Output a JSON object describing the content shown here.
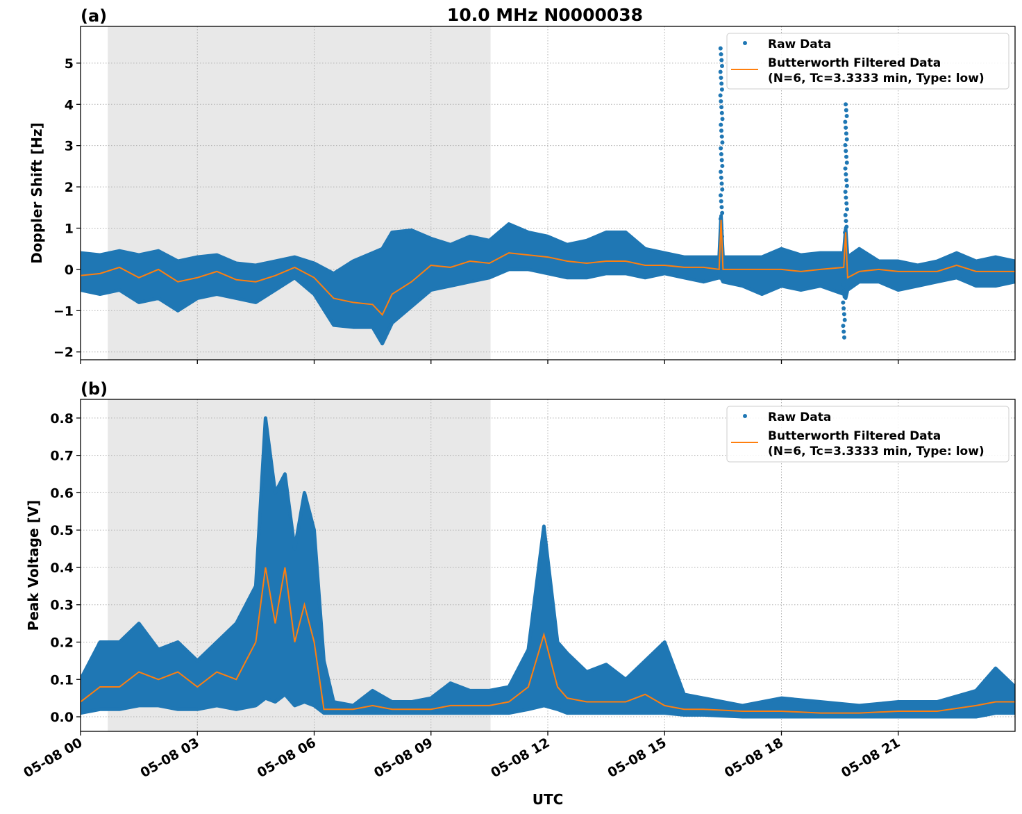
{
  "chart_data": [
    {
      "type": "scatter",
      "panel_label": "(a)",
      "title": "10.0 MHz N0000038",
      "xlabel": "",
      "ylabel": "Doppler Shift [Hz]",
      "xlim": [
        0,
        24
      ],
      "ylim": [
        -2.19,
        5.89
      ],
      "yticks": [
        -2,
        -1,
        0,
        1,
        2,
        3,
        4,
        5
      ],
      "ytick_labels": [
        "−2",
        "−1",
        "0",
        "1",
        "2",
        "3",
        "4",
        "5"
      ],
      "grid": true,
      "shaded_interval_hours": [
        0.7,
        10.53
      ],
      "legend": {
        "placement": "top-right",
        "entries": [
          "Raw Data",
          "Butterworth Filtered Data",
          "(N=6, Tc=3.3333 min, Type: low)"
        ]
      },
      "colors": {
        "raw": "#1f77b4",
        "filtered": "#ff7f0e",
        "shade": "#e8e8e8"
      },
      "x_hours": [
        0,
        0.5,
        1,
        1.5,
        2,
        2.5,
        3,
        3.5,
        4,
        4.5,
        5,
        5.5,
        6,
        6.5,
        7,
        7.5,
        7.75,
        8,
        8.5,
        9,
        9.5,
        10,
        10.5,
        11,
        11.5,
        12,
        12.5,
        13,
        13.5,
        14,
        14.5,
        15,
        15.5,
        16,
        16.4,
        16.45,
        16.5,
        17,
        17.5,
        18,
        18.5,
        19,
        19.6,
        19.65,
        19.7,
        20,
        20.5,
        21,
        21.5,
        22,
        22.5,
        23,
        23.5,
        24
      ],
      "filtered": [
        -0.15,
        -0.1,
        0.05,
        -0.2,
        0.0,
        -0.3,
        -0.2,
        -0.05,
        -0.25,
        -0.3,
        -0.15,
        0.05,
        -0.2,
        -0.7,
        -0.8,
        -0.85,
        -1.1,
        -0.6,
        -0.3,
        0.1,
        0.05,
        0.2,
        0.15,
        0.4,
        0.35,
        0.3,
        0.2,
        0.15,
        0.2,
        0.2,
        0.1,
        0.1,
        0.05,
        0.05,
        0.0,
        1.2,
        0.0,
        0.0,
        0.0,
        0.0,
        -0.05,
        0.0,
        0.05,
        0.9,
        -0.2,
        -0.05,
        0.0,
        -0.05,
        -0.05,
        -0.05,
        0.1,
        -0.05,
        -0.05,
        -0.05
      ],
      "raw_upper": [
        0.4,
        0.35,
        0.45,
        0.35,
        0.45,
        0.2,
        0.3,
        0.35,
        0.15,
        0.1,
        0.2,
        0.3,
        0.15,
        -0.1,
        0.2,
        0.4,
        0.5,
        0.9,
        0.95,
        0.75,
        0.6,
        0.8,
        0.7,
        1.1,
        0.9,
        0.8,
        0.6,
        0.7,
        0.9,
        0.9,
        0.5,
        0.4,
        0.3,
        0.3,
        0.3,
        1.3,
        0.3,
        0.3,
        0.3,
        0.5,
        0.35,
        0.4,
        0.4,
        1.0,
        0.3,
        0.5,
        0.2,
        0.2,
        0.1,
        0.2,
        0.4,
        0.2,
        0.3,
        0.2
      ],
      "raw_lower": [
        -0.5,
        -0.6,
        -0.5,
        -0.8,
        -0.7,
        -1.0,
        -0.7,
        -0.6,
        -0.7,
        -0.8,
        -0.5,
        -0.2,
        -0.6,
        -1.35,
        -1.4,
        -1.4,
        -1.8,
        -1.3,
        -0.9,
        -0.5,
        -0.4,
        -0.3,
        -0.2,
        0.0,
        0.0,
        -0.1,
        -0.2,
        -0.2,
        -0.1,
        -0.1,
        -0.2,
        -0.1,
        -0.2,
        -0.3,
        -0.2,
        -0.2,
        -0.3,
        -0.4,
        -0.6,
        -0.4,
        -0.5,
        -0.4,
        -0.6,
        -0.7,
        -0.5,
        -0.3,
        -0.3,
        -0.5,
        -0.4,
        -0.3,
        -0.2,
        -0.4,
        -0.4,
        -0.3
      ],
      "raw_spikes": [
        {
          "x_hours": 16.45,
          "min": -0.2,
          "max": 5.5
        },
        {
          "x_hours": 19.65,
          "min": -1.65,
          "max": 4.0
        }
      ]
    },
    {
      "type": "scatter",
      "panel_label": "(b)",
      "xlabel": "UTC",
      "ylabel": "Peak Voltage [V]",
      "xlim": [
        0,
        24
      ],
      "ylim": [
        -0.039,
        0.85
      ],
      "yticks": [
        0,
        0.1,
        0.2,
        0.3,
        0.4,
        0.5,
        0.6,
        0.7,
        0.8
      ],
      "ytick_labels": [
        "0.0",
        "0.1",
        "0.2",
        "0.3",
        "0.4",
        "0.5",
        "0.6",
        "0.7",
        "0.8"
      ],
      "xticks_hours": [
        0,
        3,
        6,
        9,
        12,
        15,
        18,
        21
      ],
      "xtick_labels": [
        "05-08 00",
        "05-08 03",
        "05-08 06",
        "05-08 09",
        "05-08 12",
        "05-08 15",
        "05-08 18",
        "05-08 21"
      ],
      "grid": true,
      "shaded_interval_hours": [
        0.7,
        10.53
      ],
      "legend": {
        "placement": "top-right",
        "entries": [
          "Raw Data",
          "Butterworth Filtered Data",
          "(N=6, Tc=3.3333 min, Type: low)"
        ]
      },
      "colors": {
        "raw": "#1f77b4",
        "filtered": "#ff7f0e",
        "shade": "#e8e8e8"
      },
      "x_hours": [
        0,
        0.5,
        1,
        1.5,
        2,
        2.5,
        3,
        3.5,
        4,
        4.5,
        4.75,
        5,
        5.25,
        5.5,
        5.75,
        6,
        6.25,
        6.5,
        7,
        7.5,
        8,
        8.5,
        9,
        9.5,
        10,
        10.5,
        11,
        11.5,
        11.9,
        12.25,
        12.5,
        13,
        13.5,
        14,
        14.5,
        15,
        15.5,
        16,
        17,
        18,
        19,
        20,
        21,
        22,
        23,
        23.5,
        24
      ],
      "filtered": [
        0.04,
        0.08,
        0.08,
        0.12,
        0.1,
        0.12,
        0.08,
        0.12,
        0.1,
        0.2,
        0.4,
        0.25,
        0.4,
        0.2,
        0.3,
        0.2,
        0.02,
        0.02,
        0.02,
        0.03,
        0.02,
        0.02,
        0.02,
        0.03,
        0.03,
        0.03,
        0.04,
        0.08,
        0.22,
        0.08,
        0.05,
        0.04,
        0.04,
        0.04,
        0.06,
        0.03,
        0.02,
        0.02,
        0.015,
        0.015,
        0.01,
        0.01,
        0.015,
        0.015,
        0.03,
        0.04,
        0.04
      ],
      "raw_upper": [
        0.1,
        0.2,
        0.2,
        0.25,
        0.18,
        0.2,
        0.15,
        0.2,
        0.25,
        0.35,
        0.8,
        0.6,
        0.65,
        0.45,
        0.6,
        0.5,
        0.15,
        0.04,
        0.03,
        0.07,
        0.04,
        0.04,
        0.05,
        0.09,
        0.07,
        0.07,
        0.08,
        0.18,
        0.51,
        0.2,
        0.17,
        0.12,
        0.14,
        0.1,
        0.15,
        0.2,
        0.06,
        0.05,
        0.03,
        0.05,
        0.04,
        0.03,
        0.04,
        0.04,
        0.07,
        0.13,
        0.08
      ],
      "raw_lower": [
        0.01,
        0.02,
        0.02,
        0.03,
        0.03,
        0.02,
        0.02,
        0.03,
        0.02,
        0.03,
        0.05,
        0.04,
        0.06,
        0.03,
        0.04,
        0.03,
        0.01,
        0.01,
        0.01,
        0.01,
        0.01,
        0.01,
        0.01,
        0.01,
        0.01,
        0.01,
        0.01,
        0.02,
        0.03,
        0.02,
        0.01,
        0.01,
        0.01,
        0.01,
        0.01,
        0.01,
        0.005,
        0.005,
        0,
        0,
        0,
        0,
        0,
        0,
        0,
        0.01,
        0.01
      ],
      "raw_spikes": []
    }
  ]
}
